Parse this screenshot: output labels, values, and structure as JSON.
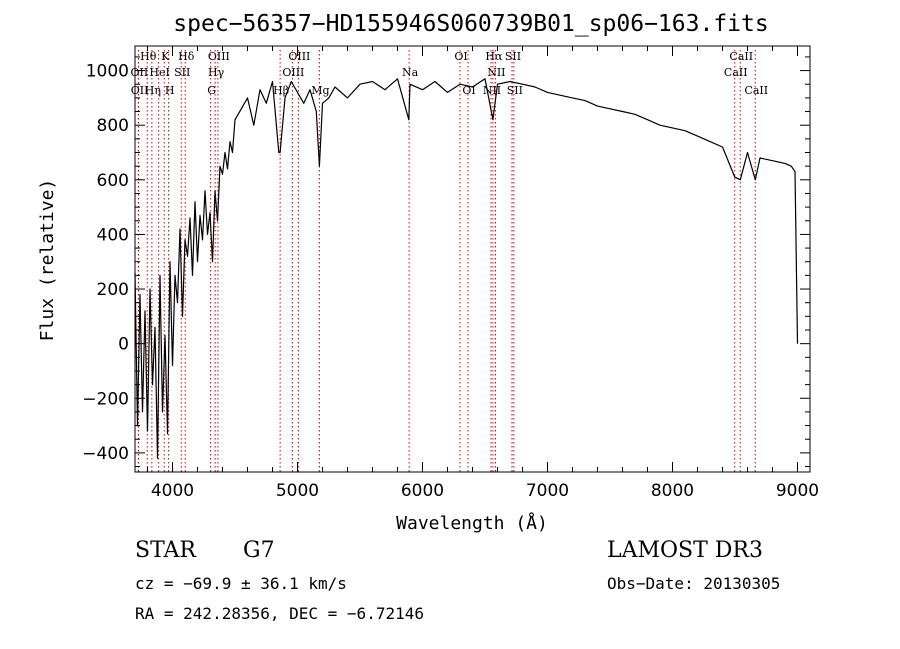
{
  "chart_data": {
    "type": "line",
    "title": "spec−56357−HD155946S060739B01_sp06−163.fits",
    "xlabel": "Wavelength (Å)",
    "ylabel": "Flux (relative)",
    "xlim": [
      3700,
      9100
    ],
    "ylim": [
      -470,
      1090
    ],
    "x_ticks": [
      4000,
      5000,
      6000,
      7000,
      8000,
      9000
    ],
    "y_ticks": [
      -400,
      -200,
      0,
      200,
      400,
      600,
      800,
      1000
    ],
    "grid": false,
    "series": [
      {
        "name": "flux",
        "x": [
          3700,
          3720,
          3740,
          3760,
          3780,
          3800,
          3820,
          3840,
          3860,
          3880,
          3900,
          3920,
          3940,
          3960,
          3980,
          4000,
          4020,
          4040,
          4060,
          4080,
          4100,
          4120,
          4140,
          4160,
          4180,
          4200,
          4220,
          4240,
          4260,
          4280,
          4300,
          4320,
          4340,
          4360,
          4380,
          4400,
          4420,
          4440,
          4460,
          4480,
          4500,
          4550,
          4600,
          4650,
          4700,
          4750,
          4800,
          4850,
          4861,
          4900,
          4950,
          5000,
          5050,
          5100,
          5150,
          5175,
          5200,
          5250,
          5300,
          5400,
          5500,
          5600,
          5700,
          5800,
          5890,
          5900,
          6000,
          6100,
          6200,
          6300,
          6400,
          6500,
          6563,
          6600,
          6700,
          6800,
          6900,
          7000,
          7100,
          7200,
          7300,
          7400,
          7500,
          7600,
          7700,
          7800,
          7900,
          8000,
          8100,
          8200,
          8300,
          8400,
          8498,
          8542,
          8600,
          8662,
          8700,
          8800,
          8900,
          8950,
          8980,
          9000
        ],
        "values": [
          260,
          -300,
          180,
          -250,
          120,
          -320,
          200,
          -150,
          60,
          -420,
          250,
          -250,
          30,
          -330,
          300,
          -80,
          250,
          150,
          420,
          100,
          380,
          320,
          460,
          250,
          520,
          300,
          470,
          380,
          560,
          400,
          480,
          300,
          560,
          450,
          650,
          620,
          700,
          640,
          740,
          700,
          820,
          860,
          900,
          800,
          930,
          880,
          960,
          700,
          700,
          900,
          960,
          920,
          880,
          930,
          850,
          650,
          880,
          900,
          940,
          900,
          950,
          960,
          930,
          970,
          820,
          950,
          930,
          960,
          920,
          950,
          940,
          970,
          820,
          950,
          960,
          950,
          940,
          920,
          910,
          900,
          890,
          870,
          860,
          850,
          840,
          820,
          800,
          790,
          780,
          760,
          740,
          720,
          610,
          600,
          700,
          600,
          680,
          670,
          660,
          650,
          630,
          0
        ]
      }
    ],
    "line_markers": [
      {
        "label": "Hθ",
        "x": 3798,
        "row": 1
      },
      {
        "label": "OII",
        "x": 3727,
        "row": 2
      },
      {
        "label": "OII",
        "x": 3729,
        "row": 3
      },
      {
        "label": "K",
        "x": 3934,
        "row": 1
      },
      {
        "label": "HeI",
        "x": 3889,
        "row": 2
      },
      {
        "label": "Hη",
        "x": 3835,
        "row": 3
      },
      {
        "label": "Hδ",
        "x": 4102,
        "row": 1
      },
      {
        "label": "SII",
        "x": 4070,
        "row": 2
      },
      {
        "label": "H",
        "x": 3969,
        "row": 3
      },
      {
        "label": "OIII",
        "x": 4363,
        "row": 1
      },
      {
        "label": "Hγ",
        "x": 4341,
        "row": 2
      },
      {
        "label": "G",
        "x": 4305,
        "row": 3
      },
      {
        "label": "OIII",
        "x": 5007,
        "row": 1
      },
      {
        "label": "OIII",
        "x": 4959,
        "row": 2
      },
      {
        "label": "Hβ",
        "x": 4861,
        "row": 3
      },
      {
        "label": "Mg",
        "x": 5175,
        "row": 3
      },
      {
        "label": "Na",
        "x": 5893,
        "row": 2
      },
      {
        "label": "OI",
        "x": 6300,
        "row": 1
      },
      {
        "label": "OI",
        "x": 6364,
        "row": 3
      },
      {
        "label": "Hα",
        "x": 6563,
        "row": 1
      },
      {
        "label": "SII",
        "x": 6716,
        "row": 1
      },
      {
        "label": "NII",
        "x": 6583,
        "row": 2
      },
      {
        "label": "NII",
        "x": 6548,
        "row": 3
      },
      {
        "label": "SII",
        "x": 6731,
        "row": 3
      },
      {
        "label": "CaII",
        "x": 8542,
        "row": 1
      },
      {
        "label": "CaII",
        "x": 8498,
        "row": 2
      },
      {
        "label": "CaII",
        "x": 8662,
        "row": 3
      }
    ]
  },
  "info": {
    "object_class": "STAR",
    "subclass": "G7",
    "survey": "LAMOST DR3",
    "cz": "cz = −69.9 ± 36.1 km/s",
    "obs_date": "Obs−Date: 20130305",
    "coords": "RA = 242.28356, DEC =  −6.72146"
  }
}
